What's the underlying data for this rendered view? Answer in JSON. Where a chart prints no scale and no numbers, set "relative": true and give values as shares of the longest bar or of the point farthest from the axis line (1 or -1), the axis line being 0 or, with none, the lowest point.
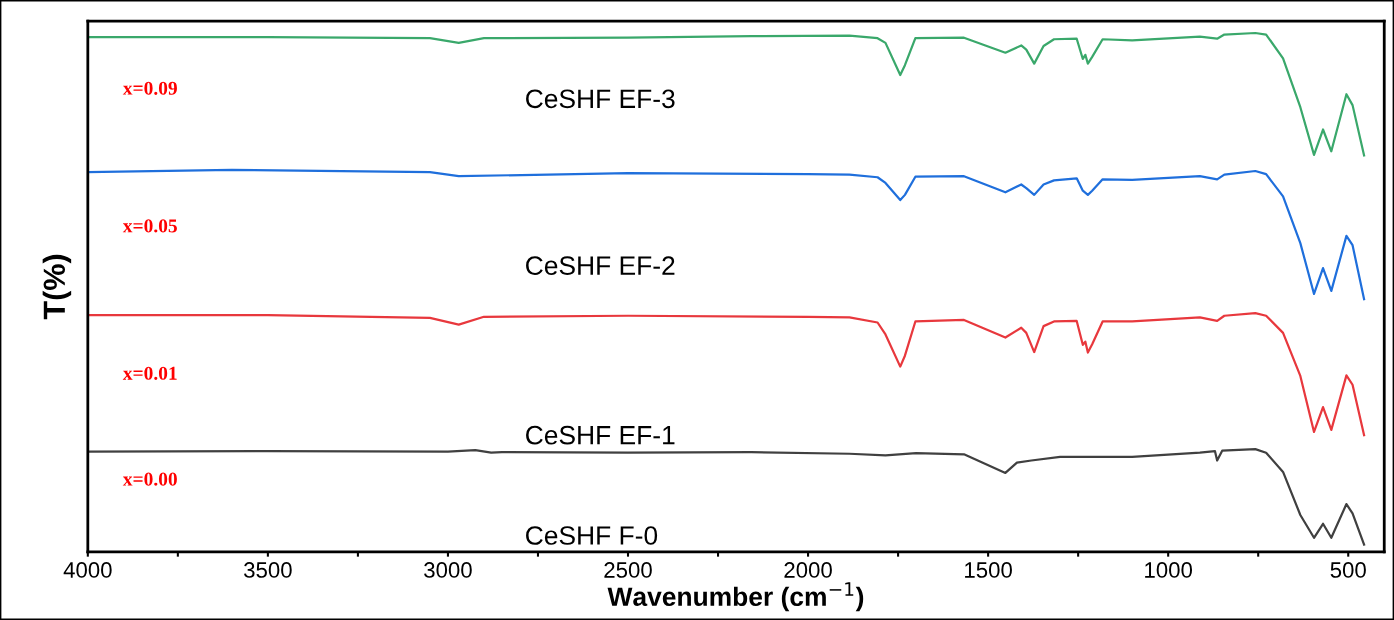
{
  "chart_data": {
    "type": "line",
    "relative": true,
    "xlabel": "Wavenumber (cm$^{−1}$)",
    "ylabel": "T(%)",
    "xlim": [
      4000,
      400
    ],
    "xticks": [
      4000,
      {
        "value": 3750,
        "label": null
      },
      3500,
      {
        "value": 3250,
        "label": null
      },
      3000,
      {
        "value": 2750,
        "label": null
      },
      2500,
      {
        "value": 2250,
        "label": null
      },
      2000,
      {
        "value": 1750,
        "label": null
      },
      1500,
      {
        "value": 1250,
        "label": null
      },
      1000,
      {
        "value": 750,
        "label": null
      },
      500
    ],
    "tick_labels": "x",
    "grid": false,
    "legend": false,
    "marker": "none",
    "line_style": "solid",
    "annotations": [
      "x=0.09",
      "x=0.05",
      "x=0.01",
      "x=0.00",
      "CeSHF EF-3",
      "CeSHF EF-2",
      "CeSHF EF-1",
      "CeSHF F-0"
    ],
    "series": [
      {
        "color": "#3aa86b",
        "x": [
          4000,
          3500,
          3050,
          2970,
          2900,
          2500,
          2158,
          1885,
          1807,
          1785,
          1744,
          1731,
          1702,
          1567,
          1452,
          1408,
          1394,
          1372,
          1346,
          1317,
          1254,
          1237,
          1230,
          1223,
          1211,
          1182,
          1100,
          912,
          864,
          844,
          758,
          728,
          681,
          633,
          595,
          570,
          547,
          505,
          488,
          456
        ],
        "values": [
          0.992,
          0.992,
          0.99,
          0.981,
          0.99,
          0.991,
          0.994,
          0.995,
          0.99,
          0.981,
          0.919,
          0.938,
          0.99,
          0.991,
          0.962,
          0.976,
          0.968,
          0.941,
          0.975,
          0.988,
          0.989,
          0.95,
          0.958,
          0.941,
          0.954,
          0.988,
          0.986,
          0.993,
          0.989,
          0.997,
          1.0,
          0.997,
          0.951,
          0.857,
          0.765,
          0.814,
          0.772,
          0.882,
          0.861,
          0.764
        ]
      },
      {
        "color": "#1f6fdc",
        "x": [
          4000,
          3600,
          3050,
          2970,
          2500,
          2000,
          1885,
          1807,
          1785,
          1744,
          1731,
          1702,
          1567,
          1452,
          1408,
          1394,
          1372,
          1346,
          1317,
          1254,
          1237,
          1223,
          1211,
          1182,
          1100,
          912,
          864,
          844,
          758,
          728,
          681,
          633,
          595,
          570,
          547,
          505,
          488,
          456
        ],
        "values": [
          0.732,
          0.736,
          0.732,
          0.724,
          0.73,
          0.728,
          0.727,
          0.722,
          0.711,
          0.678,
          0.688,
          0.723,
          0.724,
          0.693,
          0.708,
          0.701,
          0.688,
          0.708,
          0.716,
          0.72,
          0.696,
          0.688,
          0.696,
          0.718,
          0.717,
          0.724,
          0.718,
          0.727,
          0.734,
          0.728,
          0.685,
          0.595,
          0.497,
          0.547,
          0.503,
          0.609,
          0.591,
          0.487
        ]
      },
      {
        "color": "#e8383d",
        "x": [
          4000,
          3500,
          3050,
          2970,
          2900,
          2500,
          2000,
          1885,
          1807,
          1785,
          1744,
          1731,
          1702,
          1567,
          1452,
          1408,
          1394,
          1372,
          1346,
          1317,
          1254,
          1237,
          1230,
          1223,
          1211,
          1182,
          1100,
          912,
          864,
          844,
          758,
          728,
          681,
          633,
          595,
          570,
          547,
          505,
          488,
          456
        ],
        "values": [
          0.456,
          0.456,
          0.451,
          0.438,
          0.453,
          0.455,
          0.453,
          0.452,
          0.442,
          0.419,
          0.357,
          0.378,
          0.444,
          0.447,
          0.413,
          0.432,
          0.422,
          0.385,
          0.435,
          0.444,
          0.445,
          0.399,
          0.405,
          0.384,
          0.4,
          0.444,
          0.444,
          0.452,
          0.445,
          0.455,
          0.46,
          0.455,
          0.422,
          0.339,
          0.231,
          0.279,
          0.235,
          0.34,
          0.322,
          0.225
        ]
      },
      {
        "color": "#404040",
        "x": [
          4000,
          3500,
          3000,
          2924,
          2880,
          2850,
          2500,
          2158,
          1885,
          1785,
          1700,
          1567,
          1452,
          1420,
          1380,
          1300,
          1100,
          912,
          870,
          864,
          850,
          758,
          728,
          681,
          633,
          595,
          570,
          547,
          505,
          488,
          456
        ],
        "values": [
          0.193,
          0.194,
          0.193,
          0.196,
          0.191,
          0.192,
          0.191,
          0.192,
          0.189,
          0.186,
          0.19,
          0.188,
          0.152,
          0.172,
          0.176,
          0.183,
          0.183,
          0.191,
          0.194,
          0.176,
          0.195,
          0.198,
          0.191,
          0.154,
          0.071,
          0.027,
          0.054,
          0.027,
          0.092,
          0.074,
          0.014
        ]
      }
    ]
  }
}
